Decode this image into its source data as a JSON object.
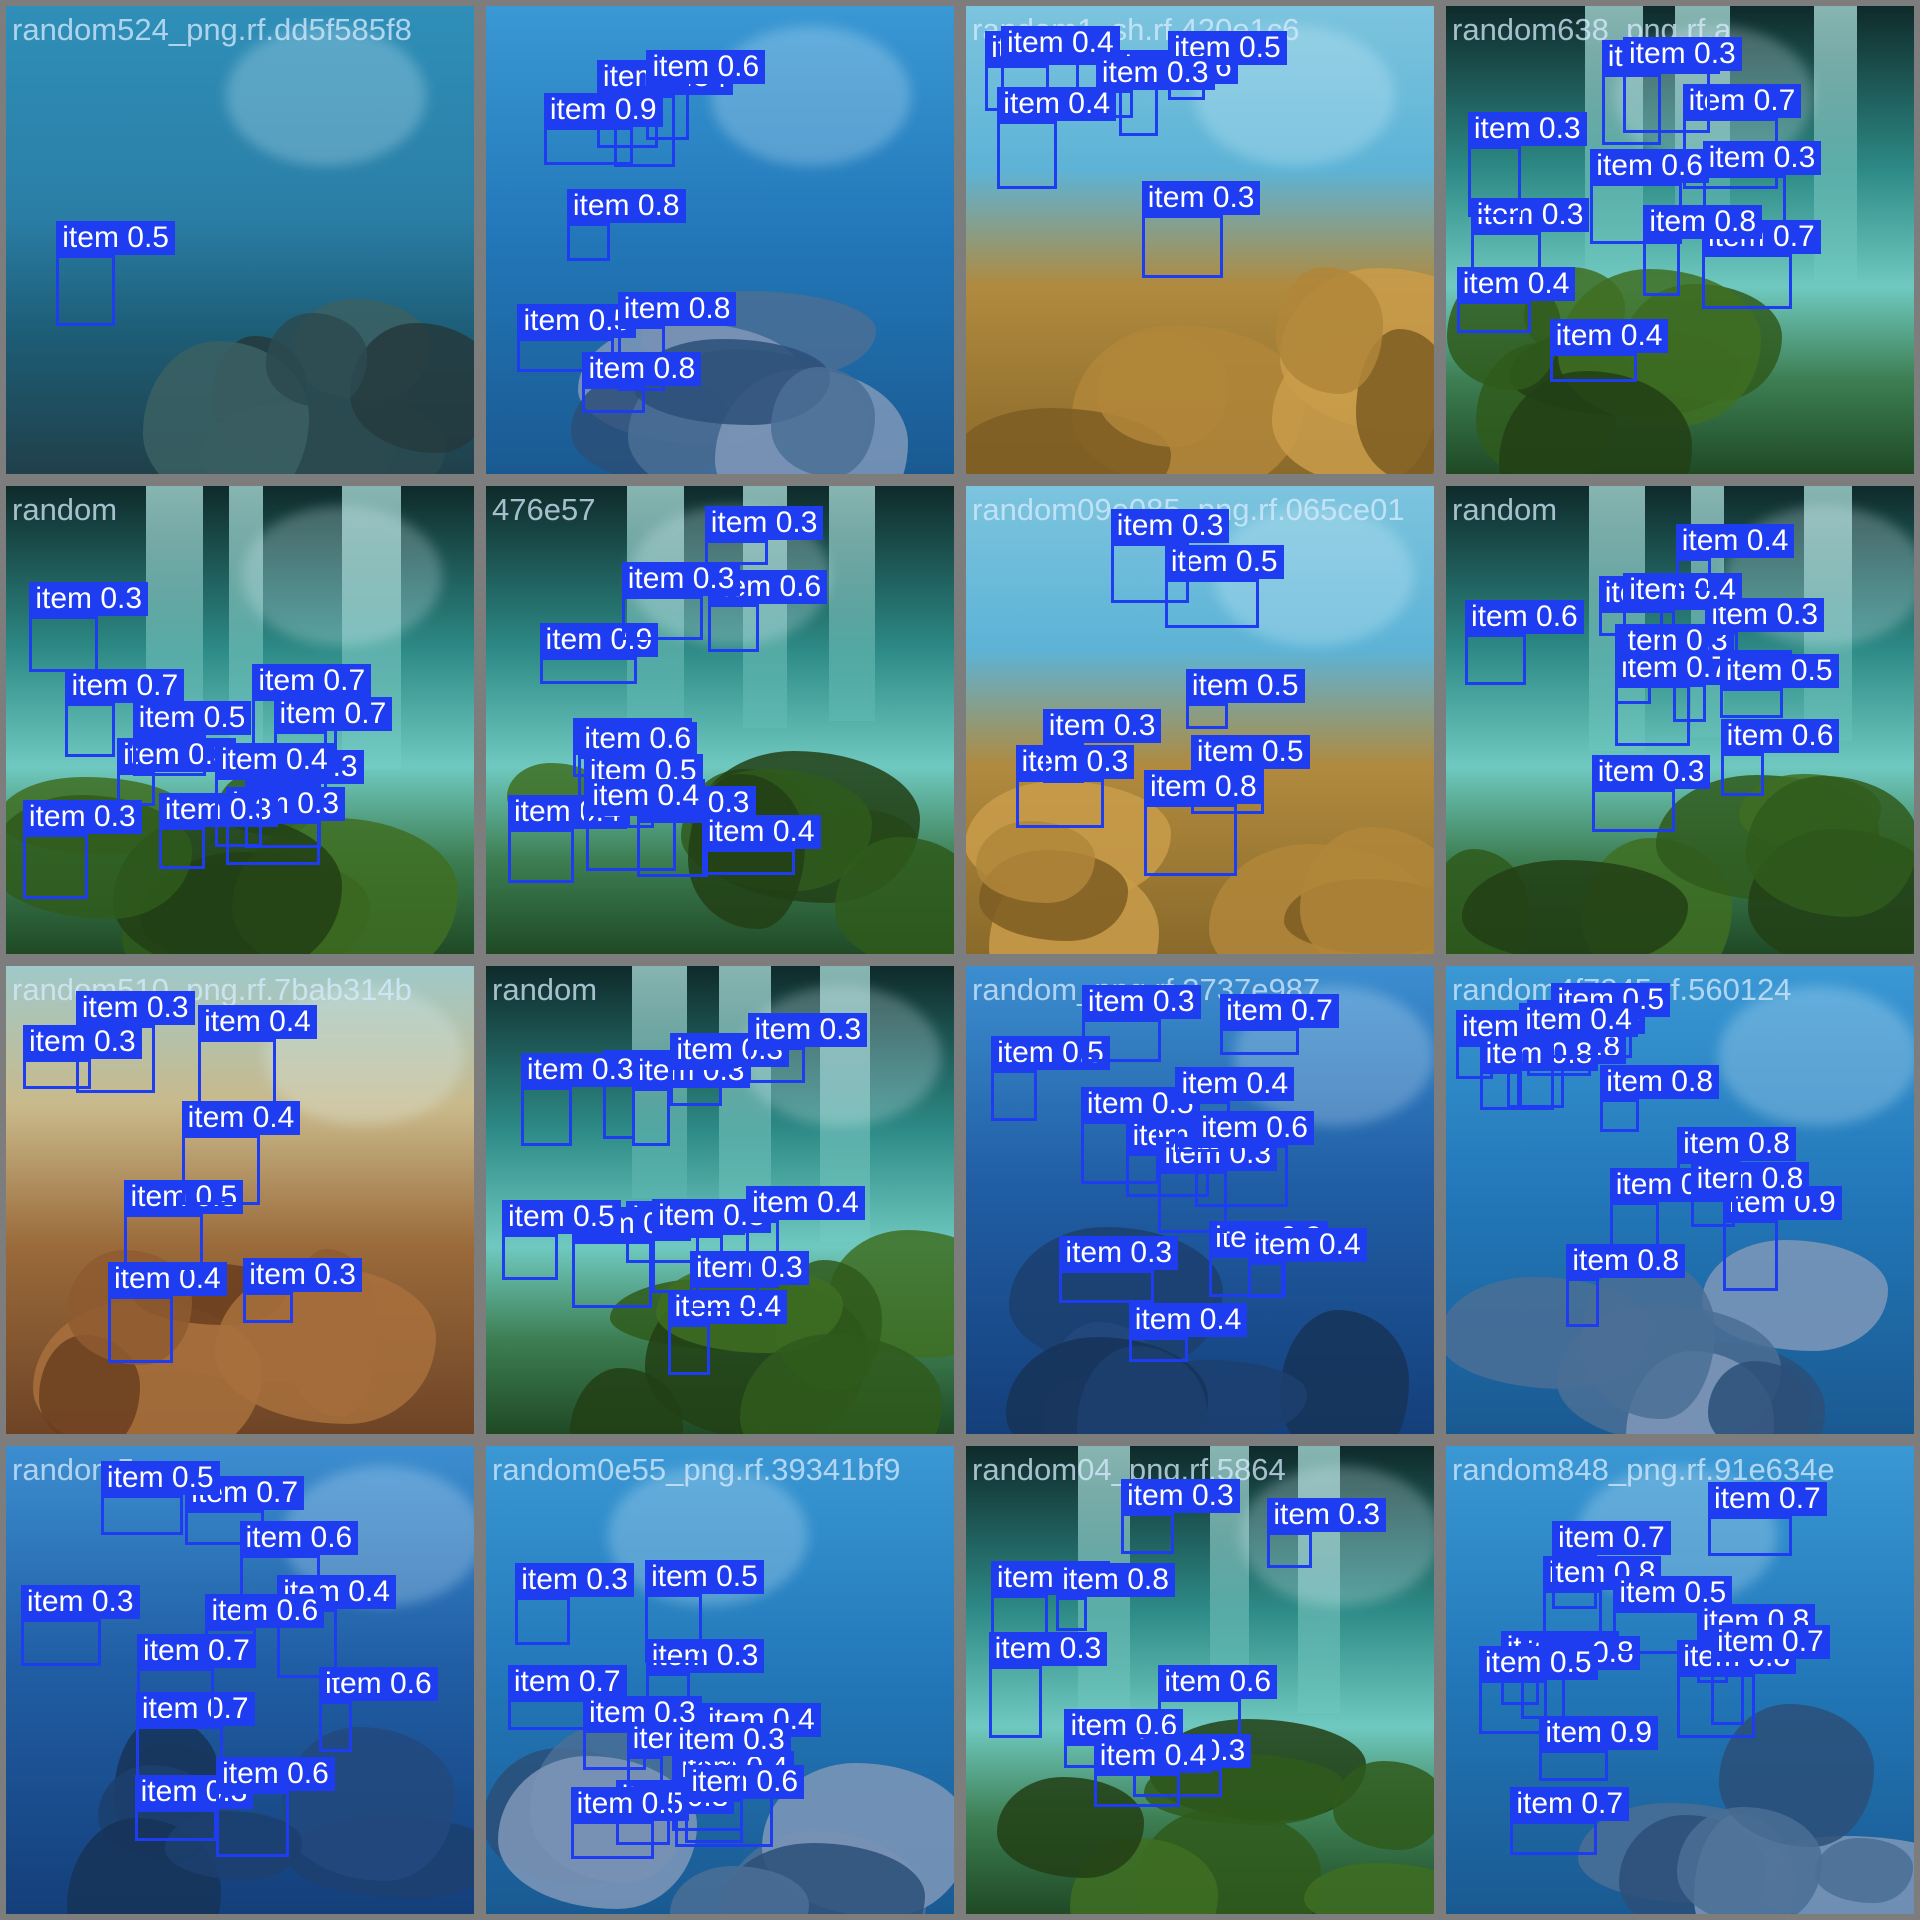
{
  "mosaic": {
    "detection_color": "#1e3cf0",
    "tiles": [
      {
        "caption": "random524_png.rf.dd5f585f8",
        "scene": "deep-reef",
        "detections": [
          {
            "label": "item 0.5"
          }
        ]
      },
      {
        "caption": "",
        "scene": "blue-reef",
        "detections": [
          {
            "label": "item 0.5"
          },
          {
            "label": "item 0.4"
          },
          {
            "label": "item 0.8"
          },
          {
            "label": "item 0.8"
          },
          {
            "label": "item 0.6"
          },
          {
            "label": "item 0.9"
          },
          {
            "label": "item 0.8"
          },
          {
            "label": "item 0.8"
          }
        ]
      },
      {
        "caption": "random1_sh.rf.420e1c6",
        "scene": "sunny-coral",
        "detections": [
          {
            "label": "item 0.3"
          },
          {
            "label": "item 0.6"
          },
          {
            "label": "item 0.3"
          },
          {
            "label": "item 0.4"
          },
          {
            "label": "item 0.5"
          },
          {
            "label": "item 0.3"
          },
          {
            "label": "item 0.4"
          }
        ]
      },
      {
        "caption": "random638_png.rf.a",
        "scene": "wreck",
        "detections": [
          {
            "label": "item 0.7"
          },
          {
            "label": "item 0.8"
          },
          {
            "label": "item 0.3"
          },
          {
            "label": "item 0.7"
          },
          {
            "label": "item 0.6"
          },
          {
            "label": "item 0.8"
          },
          {
            "label": "item 0.3"
          },
          {
            "label": "item 0.4"
          },
          {
            "label": "item 0.3"
          },
          {
            "label": "item 0.3"
          },
          {
            "label": "item 0.4"
          }
        ]
      },
      {
        "caption": "random",
        "scene": "wreck",
        "detections": [
          {
            "label": "item 0.3"
          },
          {
            "label": "item 0.3"
          },
          {
            "label": "item 0.7"
          },
          {
            "label": "item 0.3"
          },
          {
            "label": "item 0.3"
          },
          {
            "label": "item 0.5"
          },
          {
            "label": "item 0.3"
          },
          {
            "label": "item 0.7"
          },
          {
            "label": "item 0.7"
          },
          {
            "label": "item 0.3"
          },
          {
            "label": "item 0.4"
          }
        ]
      },
      {
        "caption": "476e57",
        "scene": "wreck",
        "detections": [
          {
            "label": "item 0.6"
          },
          {
            "label": "item 0.3"
          },
          {
            "label": "item 0.4"
          },
          {
            "label": "item 0.3"
          },
          {
            "label": "item 0.9"
          },
          {
            "label": "item 0.3"
          },
          {
            "label": "item 0.4"
          },
          {
            "label": "item 0.3"
          },
          {
            "label": "item 0.5"
          },
          {
            "label": "item 0.6"
          },
          {
            "label": "item 0.4"
          }
        ]
      },
      {
        "caption": "random09e085_png.rf.065ce01",
        "scene": "sunny-coral",
        "detections": [
          {
            "label": "item 0.5"
          },
          {
            "label": "item 0.8"
          },
          {
            "label": "item 0.5"
          },
          {
            "label": "item 0.3"
          },
          {
            "label": "item 0.3"
          },
          {
            "label": "item 0.3"
          },
          {
            "label": "item 0.5"
          }
        ]
      },
      {
        "caption": "random",
        "scene": "wreck",
        "detections": [
          {
            "label": "item 0.3"
          },
          {
            "label": "item 0.3"
          },
          {
            "label": "item 0.3"
          },
          {
            "label": "item 0.3"
          },
          {
            "label": "item 0.3"
          },
          {
            "label": "item 0.6"
          },
          {
            "label": "item 0.6"
          },
          {
            "label": "item 0.7"
          },
          {
            "label": "item 0.4"
          },
          {
            "label": "item 0.5"
          },
          {
            "label": "item 0.4"
          }
        ]
      },
      {
        "caption": "random510_png.rf.7bab314b",
        "scene": "golden-coral",
        "detections": [
          {
            "label": "item 0.4"
          },
          {
            "label": "item 0.3"
          },
          {
            "label": "item 0.4"
          },
          {
            "label": "item 0.3"
          },
          {
            "label": "item 0.5"
          },
          {
            "label": "item 0.4"
          },
          {
            "label": "item 0.3"
          }
        ]
      },
      {
        "caption": "random",
        "scene": "wreck",
        "detections": [
          {
            "label": "item 0.3"
          },
          {
            "label": "item 0.6"
          },
          {
            "label": "item 0.4"
          },
          {
            "label": "item 0.4"
          },
          {
            "label": "item 0.3"
          },
          {
            "label": "item 0.8"
          },
          {
            "label": "item 0.5"
          },
          {
            "label": "item 0.3"
          },
          {
            "label": "item 0.4"
          },
          {
            "label": "item 0.3"
          },
          {
            "label": "item 0.3"
          },
          {
            "label": "item 0.3"
          }
        ]
      },
      {
        "caption": "random_png.rf.3737e987",
        "scene": "open-blue",
        "detections": [
          {
            "label": "item 0.3"
          },
          {
            "label": "item 0.3"
          },
          {
            "label": "item 0.4"
          },
          {
            "label": "item 0.7"
          },
          {
            "label": "item 0.3"
          },
          {
            "label": "item 0.5"
          },
          {
            "label": "item 0.3"
          },
          {
            "label": "item 0.5"
          },
          {
            "label": "item 0.3"
          },
          {
            "label": "item 0.4"
          },
          {
            "label": "item 0.4"
          },
          {
            "label": "item 0.6"
          }
        ]
      },
      {
        "caption": "random4f7845.rf.560124",
        "scene": "blue-reef",
        "detections": [
          {
            "label": "item 0.8"
          },
          {
            "label": "item 0.9"
          },
          {
            "label": "item 0.8"
          },
          {
            "label": "item 0.8"
          },
          {
            "label": "item 0.8"
          },
          {
            "label": "item 0.8"
          },
          {
            "label": "item 0.6"
          },
          {
            "label": "item 0.8"
          },
          {
            "label": "item 0.5"
          },
          {
            "label": "item 0.8"
          },
          {
            "label": "item 0.4"
          },
          {
            "label": "item 0.8"
          }
        ]
      },
      {
        "caption": "random5",
        "scene": "open-blue",
        "detections": [
          {
            "label": "item 0.7"
          },
          {
            "label": "item 0.6"
          },
          {
            "label": "item 0.7"
          },
          {
            "label": "item 0.7"
          },
          {
            "label": "item 0.4"
          },
          {
            "label": "item 0.3"
          },
          {
            "label": "item 0.6"
          },
          {
            "label": "item 0.6"
          },
          {
            "label": "item 0.5"
          },
          {
            "label": "item 0.3"
          },
          {
            "label": "item 0.6"
          }
        ]
      },
      {
        "caption": "random0e55_png.rf.39341bf9",
        "scene": "blue-reef",
        "detections": [
          {
            "label": "item 0.3"
          },
          {
            "label": "item 0.7"
          },
          {
            "label": "item 0.4"
          },
          {
            "label": "item 0.3"
          },
          {
            "label": "item 0.3"
          },
          {
            "label": "item 0.4"
          },
          {
            "label": "item 0.3"
          },
          {
            "label": "item 0.3"
          },
          {
            "label": "item 0.5"
          },
          {
            "label": "item 0.6"
          },
          {
            "label": "item 0.5"
          },
          {
            "label": "item 0.3"
          }
        ]
      },
      {
        "caption": "random04_png.rf.5864",
        "scene": "wreck",
        "detections": [
          {
            "label": "item 0.6"
          },
          {
            "label": "item 0.7"
          },
          {
            "label": "item 0.8"
          },
          {
            "label": "item 0.6"
          },
          {
            "label": "item 0.3"
          },
          {
            "label": "item 0.3"
          },
          {
            "label": "item 0.3"
          },
          {
            "label": "item 0.3"
          },
          {
            "label": "item 0.4"
          }
        ]
      },
      {
        "caption": "random848_png.rf.91e634e",
        "scene": "blue-reef",
        "detections": [
          {
            "label": "item 0.8"
          },
          {
            "label": "item 0.5"
          },
          {
            "label": "item 0.9"
          },
          {
            "label": "item 0.8"
          },
          {
            "label": "item 0.7"
          },
          {
            "label": "item 0.5"
          },
          {
            "label": "item 0.5"
          },
          {
            "label": "item 0.8"
          },
          {
            "label": "item 0.7"
          },
          {
            "label": "item 0.7"
          },
          {
            "label": "item 0.8"
          },
          {
            "label": "item 0.7"
          }
        ]
      }
    ]
  }
}
